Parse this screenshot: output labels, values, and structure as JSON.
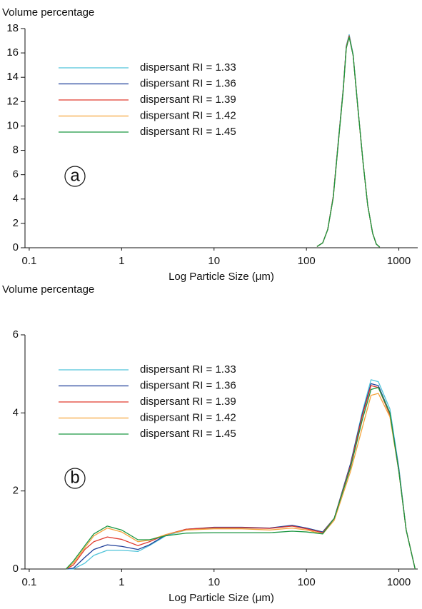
{
  "chart_data": [
    {
      "type": "line",
      "title": "Volume percentage",
      "x_label": "Log Particle Size (μm)",
      "annotation": "a",
      "log_x": true,
      "xlim": [
        0.09,
        1600
      ],
      "xticks": [
        0.1,
        1,
        10,
        100,
        1000
      ],
      "ylim": [
        0,
        18
      ],
      "yticks": [
        0,
        2,
        4,
        6,
        8,
        10,
        12,
        14,
        16,
        18
      ],
      "x": [
        130,
        150,
        170,
        195,
        220,
        250,
        270,
        290,
        320,
        360,
        410,
        460,
        520,
        570,
        620
      ],
      "series": [
        {
          "name": "dispersant RI = 1.33",
          "color": "#4fc3d9",
          "values": [
            0.1,
            0.4,
            1.5,
            4.2,
            8.6,
            13.1,
            16.6,
            17.5,
            15.9,
            11.6,
            7.0,
            3.5,
            1.2,
            0.3,
            0.05
          ]
        },
        {
          "name": "dispersant RI = 1.36",
          "color": "#1f3f99",
          "values": [
            0.1,
            0.4,
            1.5,
            4.2,
            8.5,
            13.0,
            16.5,
            17.4,
            15.8,
            11.5,
            7.0,
            3.5,
            1.2,
            0.3,
            0.05
          ]
        },
        {
          "name": "dispersant RI = 1.39",
          "color": "#e03a2e",
          "values": [
            0.1,
            0.4,
            1.5,
            4.2,
            8.5,
            13.0,
            16.5,
            17.4,
            15.8,
            11.5,
            7.0,
            3.5,
            1.2,
            0.3,
            0.05
          ]
        },
        {
          "name": "dispersant RI = 1.42",
          "color": "#f5a33a",
          "values": [
            0.1,
            0.4,
            1.5,
            4.1,
            8.4,
            12.9,
            16.4,
            17.3,
            15.8,
            11.5,
            7.0,
            3.5,
            1.2,
            0.3,
            0.05
          ]
        },
        {
          "name": "dispersant RI = 1.45",
          "color": "#1a9641",
          "values": [
            0.1,
            0.4,
            1.5,
            4.1,
            8.4,
            12.9,
            16.4,
            17.3,
            15.8,
            11.5,
            7.0,
            3.5,
            1.2,
            0.3,
            0.05
          ]
        }
      ]
    },
    {
      "type": "line",
      "title": "Volume percentage",
      "x_label": "Log Particle Size (μm)",
      "annotation": "b",
      "log_x": true,
      "xlim": [
        0.09,
        1600
      ],
      "xticks": [
        0.1,
        1,
        10,
        100,
        1000
      ],
      "ylim": [
        0,
        6
      ],
      "yticks": [
        0,
        2,
        4,
        6
      ],
      "x": [
        0.25,
        0.3,
        0.4,
        0.5,
        0.7,
        1,
        1.5,
        2,
        3,
        5,
        10,
        20,
        40,
        70,
        100,
        150,
        200,
        300,
        400,
        500,
        600,
        800,
        1000,
        1200,
        1500
      ],
      "series": [
        {
          "name": "dispersant RI = 1.33",
          "color": "#4fc3d9",
          "values": [
            0,
            0,
            0.15,
            0.35,
            0.48,
            0.48,
            0.45,
            0.6,
            0.85,
            1.0,
            1.05,
            1.05,
            1.05,
            1.1,
            1.05,
            0.95,
            1.3,
            2.7,
            4.0,
            4.85,
            4.8,
            4.1,
            2.6,
            1.0,
            0
          ]
        },
        {
          "name": "dispersant RI = 1.36",
          "color": "#1f3f99",
          "values": [
            0,
            0.02,
            0.3,
            0.5,
            0.62,
            0.58,
            0.5,
            0.62,
            0.87,
            1.02,
            1.07,
            1.07,
            1.05,
            1.12,
            1.05,
            0.95,
            1.3,
            2.7,
            3.95,
            4.75,
            4.7,
            4.0,
            2.55,
            1.0,
            0
          ]
        },
        {
          "name": "dispersant RI = 1.39",
          "color": "#e03a2e",
          "values": [
            0,
            0.1,
            0.5,
            0.7,
            0.82,
            0.76,
            0.6,
            0.7,
            0.88,
            1.02,
            1.06,
            1.06,
            1.04,
            1.1,
            1.03,
            0.93,
            1.3,
            2.65,
            3.9,
            4.7,
            4.65,
            3.95,
            2.5,
            1.0,
            0
          ]
        },
        {
          "name": "dispersant RI = 1.42",
          "color": "#f5a33a",
          "values": [
            0,
            0.15,
            0.55,
            0.85,
            1.05,
            0.95,
            0.7,
            0.74,
            0.88,
            1.0,
            1.03,
            1.03,
            1.0,
            1.05,
            1.0,
            0.9,
            1.25,
            2.5,
            3.6,
            4.45,
            4.5,
            3.9,
            2.5,
            1.0,
            0
          ]
        },
        {
          "name": "dispersant RI = 1.45",
          "color": "#1a9641",
          "values": [
            0,
            0.2,
            0.6,
            0.9,
            1.1,
            1.0,
            0.75,
            0.75,
            0.85,
            0.92,
            0.93,
            0.93,
            0.93,
            0.97,
            0.95,
            0.9,
            1.3,
            2.6,
            3.8,
            4.6,
            4.65,
            4.0,
            2.5,
            1.0,
            0
          ]
        }
      ]
    }
  ]
}
